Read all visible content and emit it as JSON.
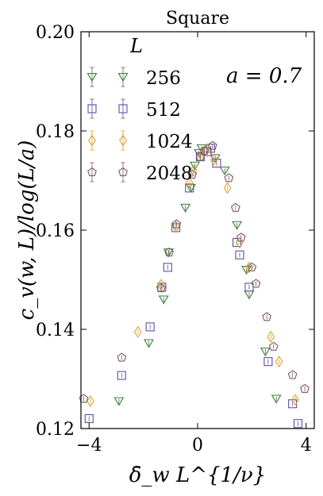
{
  "chart_data": {
    "type": "scatter",
    "title": "Square",
    "xlabel": "δ̄_w L^{1/ν}",
    "ylabel": "c_v(w, L)/log(L/a)",
    "xlim": [
      -4.3,
      4.3
    ],
    "ylim": [
      0.12,
      0.2
    ],
    "xticks": [
      -4,
      0,
      4
    ],
    "xtick_labels": [
      "−4",
      "0",
      "4"
    ],
    "yticks": [
      0.12,
      0.14,
      0.16,
      0.18,
      0.2
    ],
    "ytick_labels": [
      "0.12",
      "0.14",
      "0.16",
      "0.18",
      "0.20"
    ],
    "legend_title": "L",
    "legend_position": "top-left",
    "annotation": "a = 0.7",
    "grid": false,
    "series": [
      {
        "name": "256",
        "marker": "triangle-down",
        "color": "#3f7a3a",
        "points": [
          [
            -2.9,
            0.1255
          ],
          [
            -1.8,
            0.1372
          ],
          [
            -1.25,
            0.146
          ],
          [
            -1.07,
            0.1555
          ],
          [
            -0.45,
            0.1645
          ],
          [
            -0.25,
            0.1685
          ],
          [
            -0.1,
            0.173
          ],
          [
            0.05,
            0.1755
          ],
          [
            0.15,
            0.1765
          ],
          [
            0.65,
            0.1745
          ],
          [
            1.0,
            0.172
          ],
          [
            1.45,
            0.161
          ],
          [
            1.8,
            0.152
          ],
          [
            1.9,
            0.147
          ],
          [
            2.5,
            0.1355
          ],
          [
            2.9,
            0.126
          ]
        ]
      },
      {
        "name": "512",
        "marker": "square",
        "color": "#5a4fa5",
        "points": [
          [
            -4.0,
            0.122
          ],
          [
            -2.8,
            0.1307
          ],
          [
            -1.75,
            0.1405
          ],
          [
            -1.32,
            0.1485
          ],
          [
            -1.1,
            0.1525
          ],
          [
            -0.8,
            0.1605
          ],
          [
            -0.3,
            0.1685
          ],
          [
            0.1,
            0.1748
          ],
          [
            0.35,
            0.1758
          ],
          [
            0.48,
            0.1765
          ],
          [
            0.7,
            0.1735
          ],
          [
            1.45,
            0.1575
          ],
          [
            1.55,
            0.155
          ],
          [
            1.9,
            0.1485
          ],
          [
            2.6,
            0.1335
          ],
          [
            3.5,
            0.125
          ],
          [
            3.7,
            0.121
          ]
        ]
      },
      {
        "name": "1024",
        "marker": "diamond",
        "color": "#d9a030",
        "points": [
          [
            -3.95,
            0.1255
          ],
          [
            -2.2,
            0.1395
          ],
          [
            -1.35,
            0.149
          ],
          [
            -0.8,
            0.1607
          ],
          [
            -0.3,
            0.1695
          ],
          [
            -0.15,
            0.172
          ],
          [
            0.15,
            0.175
          ],
          [
            0.35,
            0.1763
          ],
          [
            0.6,
            0.1742
          ],
          [
            1.1,
            0.1685
          ],
          [
            1.55,
            0.1575
          ],
          [
            1.9,
            0.1525
          ],
          [
            2.7,
            0.1385
          ],
          [
            3.0,
            0.1335
          ],
          [
            3.6,
            0.1258
          ]
        ]
      },
      {
        "name": "2048",
        "marker": "pentagon",
        "color": "#7a5a63",
        "points": [
          [
            -4.2,
            0.126
          ],
          [
            -2.8,
            0.1343
          ],
          [
            -1.35,
            0.1483
          ],
          [
            -1.05,
            0.1555
          ],
          [
            -0.78,
            0.1612
          ],
          [
            -0.2,
            0.1712
          ],
          [
            0.1,
            0.1748
          ],
          [
            0.25,
            0.176
          ],
          [
            0.55,
            0.177
          ],
          [
            1.15,
            0.1705
          ],
          [
            1.4,
            0.1645
          ],
          [
            1.6,
            0.1585
          ],
          [
            2.0,
            0.1525
          ],
          [
            2.15,
            0.1492
          ],
          [
            2.55,
            0.1425
          ],
          [
            2.8,
            0.1365
          ],
          [
            3.5,
            0.1308
          ],
          [
            3.95,
            0.128
          ]
        ]
      }
    ]
  }
}
